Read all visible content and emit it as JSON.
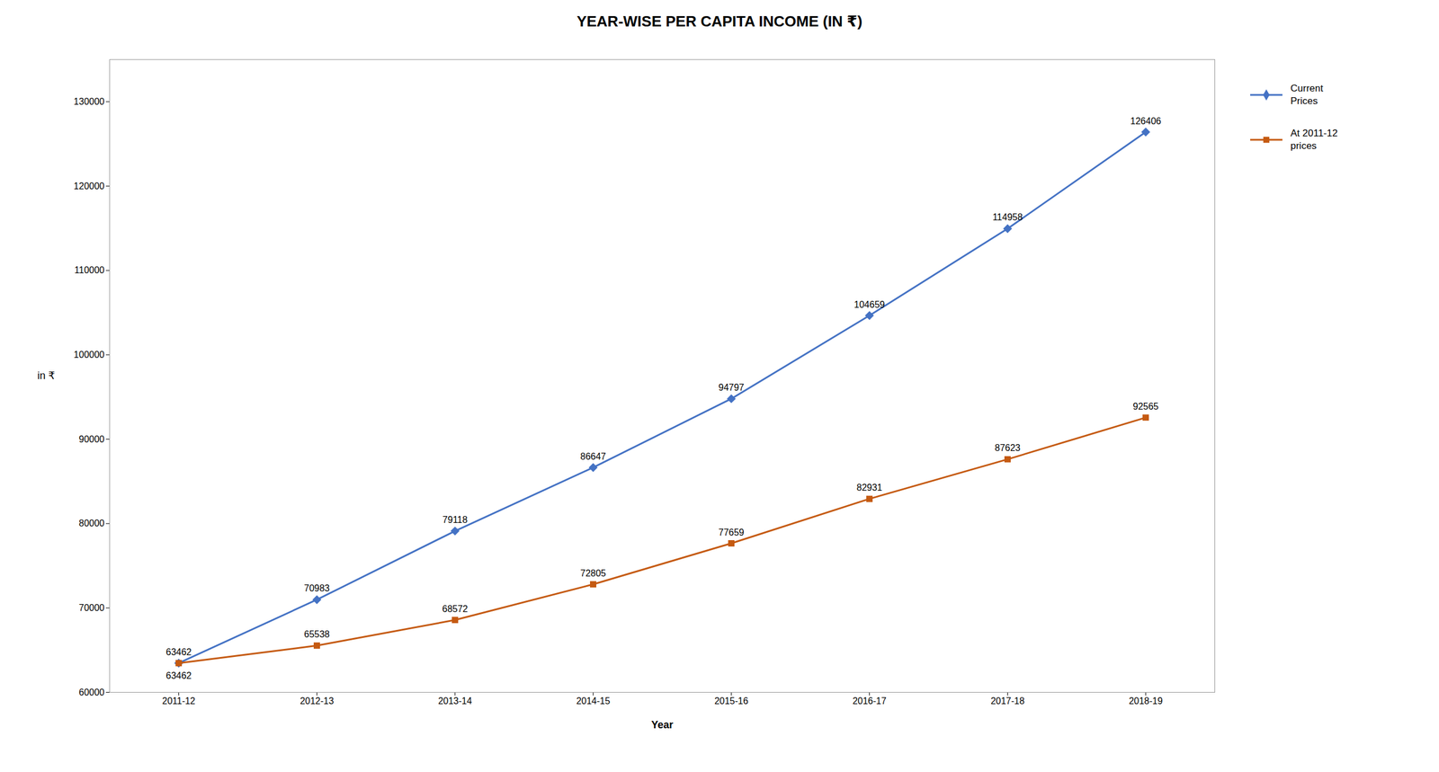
{
  "chart_data": {
    "type": "line",
    "title": "YEAR-WISE PER CAPITA INCOME (IN ₹)",
    "x_label": "Year",
    "y_label": "in ₹",
    "categories": [
      "2011-12",
      "2012-13",
      "2013-14",
      "2014-15",
      "2015-16",
      "2016-17",
      "2017-18",
      "2018-19"
    ],
    "series": [
      {
        "name": "Current\nPrices",
        "color": "#4472C4",
        "marker": "diamond",
        "values": [
          63462,
          70983,
          79118,
          86647,
          94797,
          104659,
          114958,
          126406
        ]
      },
      {
        "name": "At 2011-12\nprices",
        "color": "#C55A11",
        "marker": "square",
        "values": [
          63462,
          65538,
          68572,
          72805,
          77659,
          82931,
          87623,
          92565
        ]
      }
    ],
    "ylim": [
      60000,
      135000
    ],
    "yticks": [
      60000,
      70000,
      80000,
      90000,
      100000,
      110000,
      120000,
      130000
    ],
    "grid": false,
    "legend": "right",
    "data_labels": true
  }
}
